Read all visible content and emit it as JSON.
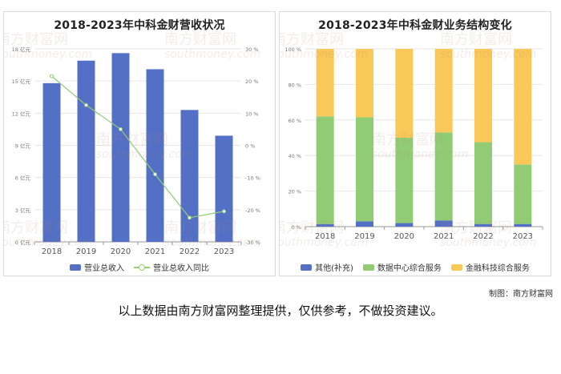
{
  "chart_data": [
    {
      "type": "bar+line",
      "title": "2018-2023年中科金财营收状况",
      "categories": [
        "2018",
        "2019",
        "2020",
        "2021",
        "2022",
        "2023"
      ],
      "y_left_ticks": [
        "0 亿元",
        "3 亿元",
        "6 亿元",
        "9 亿元",
        "12 亿元",
        "15 亿元",
        "18 亿元"
      ],
      "y_left_range": [
        0,
        18
      ],
      "y_right_ticks": [
        "-30 %",
        "-20 %",
        "-10 %",
        "0 %",
        "10 %",
        "20 %",
        "30 %"
      ],
      "y_right_range": [
        -30,
        30
      ],
      "series": [
        {
          "name": "营业总收入",
          "kind": "bar",
          "axis": "left",
          "color": "#5470c6",
          "values": [
            14.8,
            16.9,
            17.6,
            16.1,
            12.3,
            9.9
          ]
        },
        {
          "name": "营业总收入同比",
          "kind": "line",
          "axis": "right",
          "color": "#91cc75",
          "values": [
            21.5,
            12.5,
            5.0,
            -9.0,
            -22.5,
            -20.5
          ]
        }
      ],
      "legend_position": "bottom",
      "grid": true
    },
    {
      "type": "stacked-bar",
      "title": "2018-2023年中科金财业务结构变化",
      "categories": [
        "2018",
        "2019",
        "2020",
        "2021",
        "2022",
        "2023"
      ],
      "y_ticks": [
        "0 %",
        "20 %",
        "40 %",
        "60 %",
        "80 %",
        "100 %"
      ],
      "y_range": [
        0,
        100
      ],
      "series": [
        {
          "name": "其他(补充)",
          "color": "#5470c6",
          "values": [
            1.5,
            3.0,
            2.0,
            3.5,
            1.5,
            1.5
          ]
        },
        {
          "name": "数据中心综合服务",
          "color": "#91cc75",
          "values": [
            60.5,
            58.5,
            48.0,
            49.5,
            46.0,
            33.5
          ]
        },
        {
          "name": "金融科技综合服务",
          "color": "#fac858",
          "values": [
            38.0,
            38.5,
            50.0,
            47.0,
            52.5,
            65.0
          ]
        }
      ],
      "legend_position": "bottom",
      "grid": true
    }
  ],
  "watermark": {
    "text_cn": "南方财富网",
    "text_en": "southmoney.com"
  },
  "footer": {
    "credit": "制图：南方财富网",
    "disclaimer": "以上数据由南方财富网整理提供，仅供参考，不做投资建议。"
  }
}
